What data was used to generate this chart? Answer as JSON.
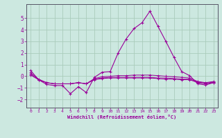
{
  "background_color": "#cce8e0",
  "grid_color": "#aaccbb",
  "line_color": "#990099",
  "xlabel": "Windchill (Refroidissement éolien,°C)",
  "xlim": [
    -0.5,
    23.5
  ],
  "ylim": [
    -2.7,
    6.2
  ],
  "yticks": [
    -2,
    -1,
    0,
    1,
    2,
    3,
    4,
    5
  ],
  "xticks": [
    0,
    1,
    2,
    3,
    4,
    5,
    6,
    7,
    8,
    9,
    10,
    11,
    12,
    13,
    14,
    15,
    16,
    17,
    18,
    19,
    20,
    21,
    22,
    23
  ],
  "series1_x": [
    0,
    1,
    2,
    3,
    4,
    5,
    6,
    7,
    8,
    9,
    10,
    11,
    12,
    13,
    14,
    15,
    16,
    17,
    18,
    19,
    20,
    21,
    22,
    23
  ],
  "series1_y": [
    0.5,
    -0.3,
    -0.7,
    -0.8,
    -0.8,
    -1.5,
    -0.9,
    -1.4,
    -0.1,
    0.35,
    0.4,
    2.0,
    3.2,
    4.1,
    4.6,
    5.6,
    4.3,
    3.0,
    1.65,
    0.4,
    0.05,
    -0.65,
    -0.75,
    -0.55
  ],
  "series2_x": [
    0,
    1,
    2,
    3,
    4,
    5,
    6,
    7,
    8,
    9,
    10,
    11,
    12,
    13,
    14,
    15,
    16,
    17,
    18,
    19,
    20,
    21,
    22,
    23
  ],
  "series2_y": [
    0.3,
    -0.25,
    -0.55,
    -0.65,
    -0.65,
    -0.65,
    -0.55,
    -0.65,
    -0.2,
    -0.05,
    0.0,
    0.05,
    0.05,
    0.1,
    0.1,
    0.1,
    0.05,
    0.0,
    -0.05,
    -0.1,
    -0.15,
    -0.45,
    -0.55,
    -0.45
  ],
  "series3_x": [
    0,
    1,
    2,
    3,
    4,
    5,
    6,
    7,
    8,
    9,
    10,
    11,
    12,
    13,
    14,
    15,
    16,
    17,
    18,
    19,
    20,
    21,
    22,
    23
  ],
  "series3_y": [
    0.2,
    -0.3,
    -0.55,
    -0.65,
    -0.65,
    -0.65,
    -0.55,
    -0.65,
    -0.25,
    -0.15,
    -0.1,
    -0.1,
    -0.1,
    -0.1,
    -0.1,
    -0.1,
    -0.15,
    -0.15,
    -0.2,
    -0.25,
    -0.25,
    -0.5,
    -0.6,
    -0.5
  ],
  "series4_x": [
    0,
    1,
    2,
    3,
    4,
    5,
    6,
    7,
    8,
    9,
    10,
    11,
    12,
    13,
    14,
    15,
    16,
    17,
    18,
    19,
    20,
    21,
    22,
    23
  ],
  "series4_y": [
    0.1,
    -0.3,
    -0.55,
    -0.65,
    -0.65,
    -0.65,
    -0.55,
    -0.65,
    -0.3,
    -0.2,
    -0.15,
    -0.15,
    -0.15,
    -0.15,
    -0.15,
    -0.15,
    -0.2,
    -0.25,
    -0.25,
    -0.3,
    -0.3,
    -0.55,
    -0.65,
    -0.55
  ]
}
